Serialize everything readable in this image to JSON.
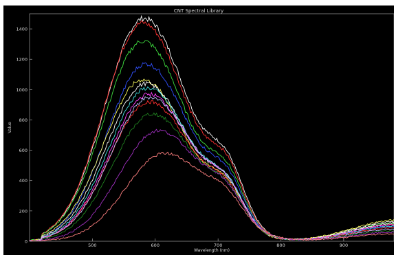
{
  "chart_data": {
    "type": "line",
    "title": "CNT Spectral Library",
    "xlabel": "Wavelength (nm)",
    "ylabel": "Value",
    "xlim": [
      400,
      980
    ],
    "ylim": [
      0,
      1500
    ],
    "xticks": [
      500,
      600,
      700,
      800,
      900
    ],
    "yticks": [
      0,
      200,
      400,
      600,
      800,
      1000,
      1200,
      1400
    ],
    "grid": false,
    "series": [
      {
        "color": "#ffffff",
        "peak": 1470,
        "peak_x": 582,
        "tail": 130
      },
      {
        "color": "#ff3030",
        "peak": 1440,
        "peak_x": 580,
        "tail": 110
      },
      {
        "color": "#40e040",
        "peak": 1320,
        "peak_x": 580,
        "tail": 120
      },
      {
        "color": "#3050ff",
        "peak": 1170,
        "peak_x": 585,
        "tail": 100
      },
      {
        "color": "#ffff60",
        "peak": 1065,
        "peak_x": 580,
        "tail": 140
      },
      {
        "color": "#ffffff",
        "peak": 1040,
        "peak_x": 585,
        "tail": 120
      },
      {
        "color": "#40e0e0",
        "peak": 1010,
        "peak_x": 588,
        "tail": 100
      },
      {
        "color": "#ff40ff",
        "peak": 970,
        "peak_x": 590,
        "tail": 110
      },
      {
        "color": "#ff3030",
        "peak": 920,
        "peak_x": 590,
        "tail": 90
      },
      {
        "color": "#c0c0ff",
        "peak": 950,
        "peak_x": 592,
        "tail": 80
      },
      {
        "color": "#208020",
        "peak": 840,
        "peak_x": 595,
        "tail": 70
      },
      {
        "color": "#a030c0",
        "peak": 730,
        "peak_x": 605,
        "tail": 60
      },
      {
        "color": "#ff8080",
        "peak": 580,
        "peak_x": 615,
        "tail": 50
      }
    ]
  }
}
